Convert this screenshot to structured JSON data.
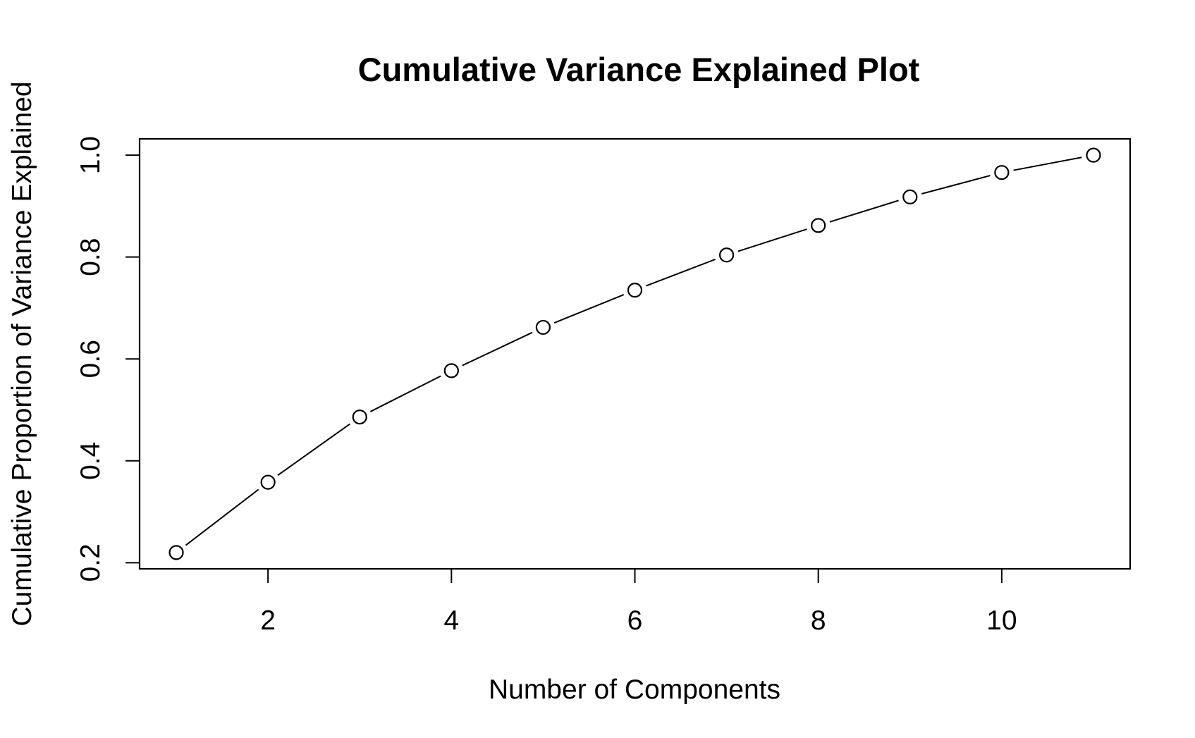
{
  "chart_data": {
    "type": "line",
    "title": "Cumulative Variance Explained Plot",
    "xlabel": "Number of Components",
    "ylabel": "Cumulative Proportion of Variance Explained",
    "x": [
      1,
      2,
      3,
      4,
      5,
      6,
      7,
      8,
      9,
      10,
      11
    ],
    "series": [
      {
        "values": [
          0.22,
          0.358,
          0.486,
          0.577,
          0.662,
          0.735,
          0.804,
          0.862,
          0.918,
          0.966,
          1.0
        ]
      }
    ],
    "xticks": [
      2,
      4,
      6,
      8,
      10
    ],
    "xtick_labels": [
      "2",
      "4",
      "6",
      "8",
      "10"
    ],
    "yticks": [
      0.2,
      0.4,
      0.6,
      0.8,
      1.0
    ],
    "ytick_labels": [
      "0.2",
      "0.4",
      "0.6",
      "0.8",
      "1.0"
    ],
    "xlim": [
      0.6,
      11.4
    ],
    "ylim": [
      0.188,
      1.032
    ],
    "markers": "open-circle",
    "line_color": "#000000",
    "marker_fill": "#ffffff",
    "grid": false,
    "legend": "none"
  }
}
